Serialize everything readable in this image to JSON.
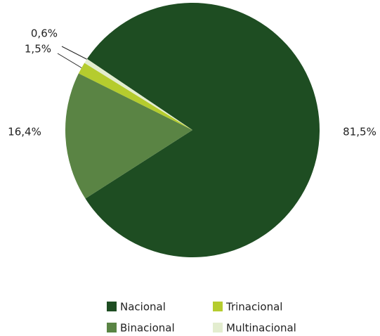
{
  "chart_data": {
    "type": "pie",
    "categories": [
      "Nacional",
      "Binacional",
      "Trinacional",
      "Multinacional"
    ],
    "values": [
      81.5,
      16.4,
      1.5,
      0.6
    ],
    "value_labels": [
      "81,5%",
      "16,4%",
      "1,5%",
      "0,6%"
    ],
    "colors": [
      "#1e4d22",
      "#5a8444",
      "#b5cc2e",
      "#e3edcf"
    ]
  }
}
